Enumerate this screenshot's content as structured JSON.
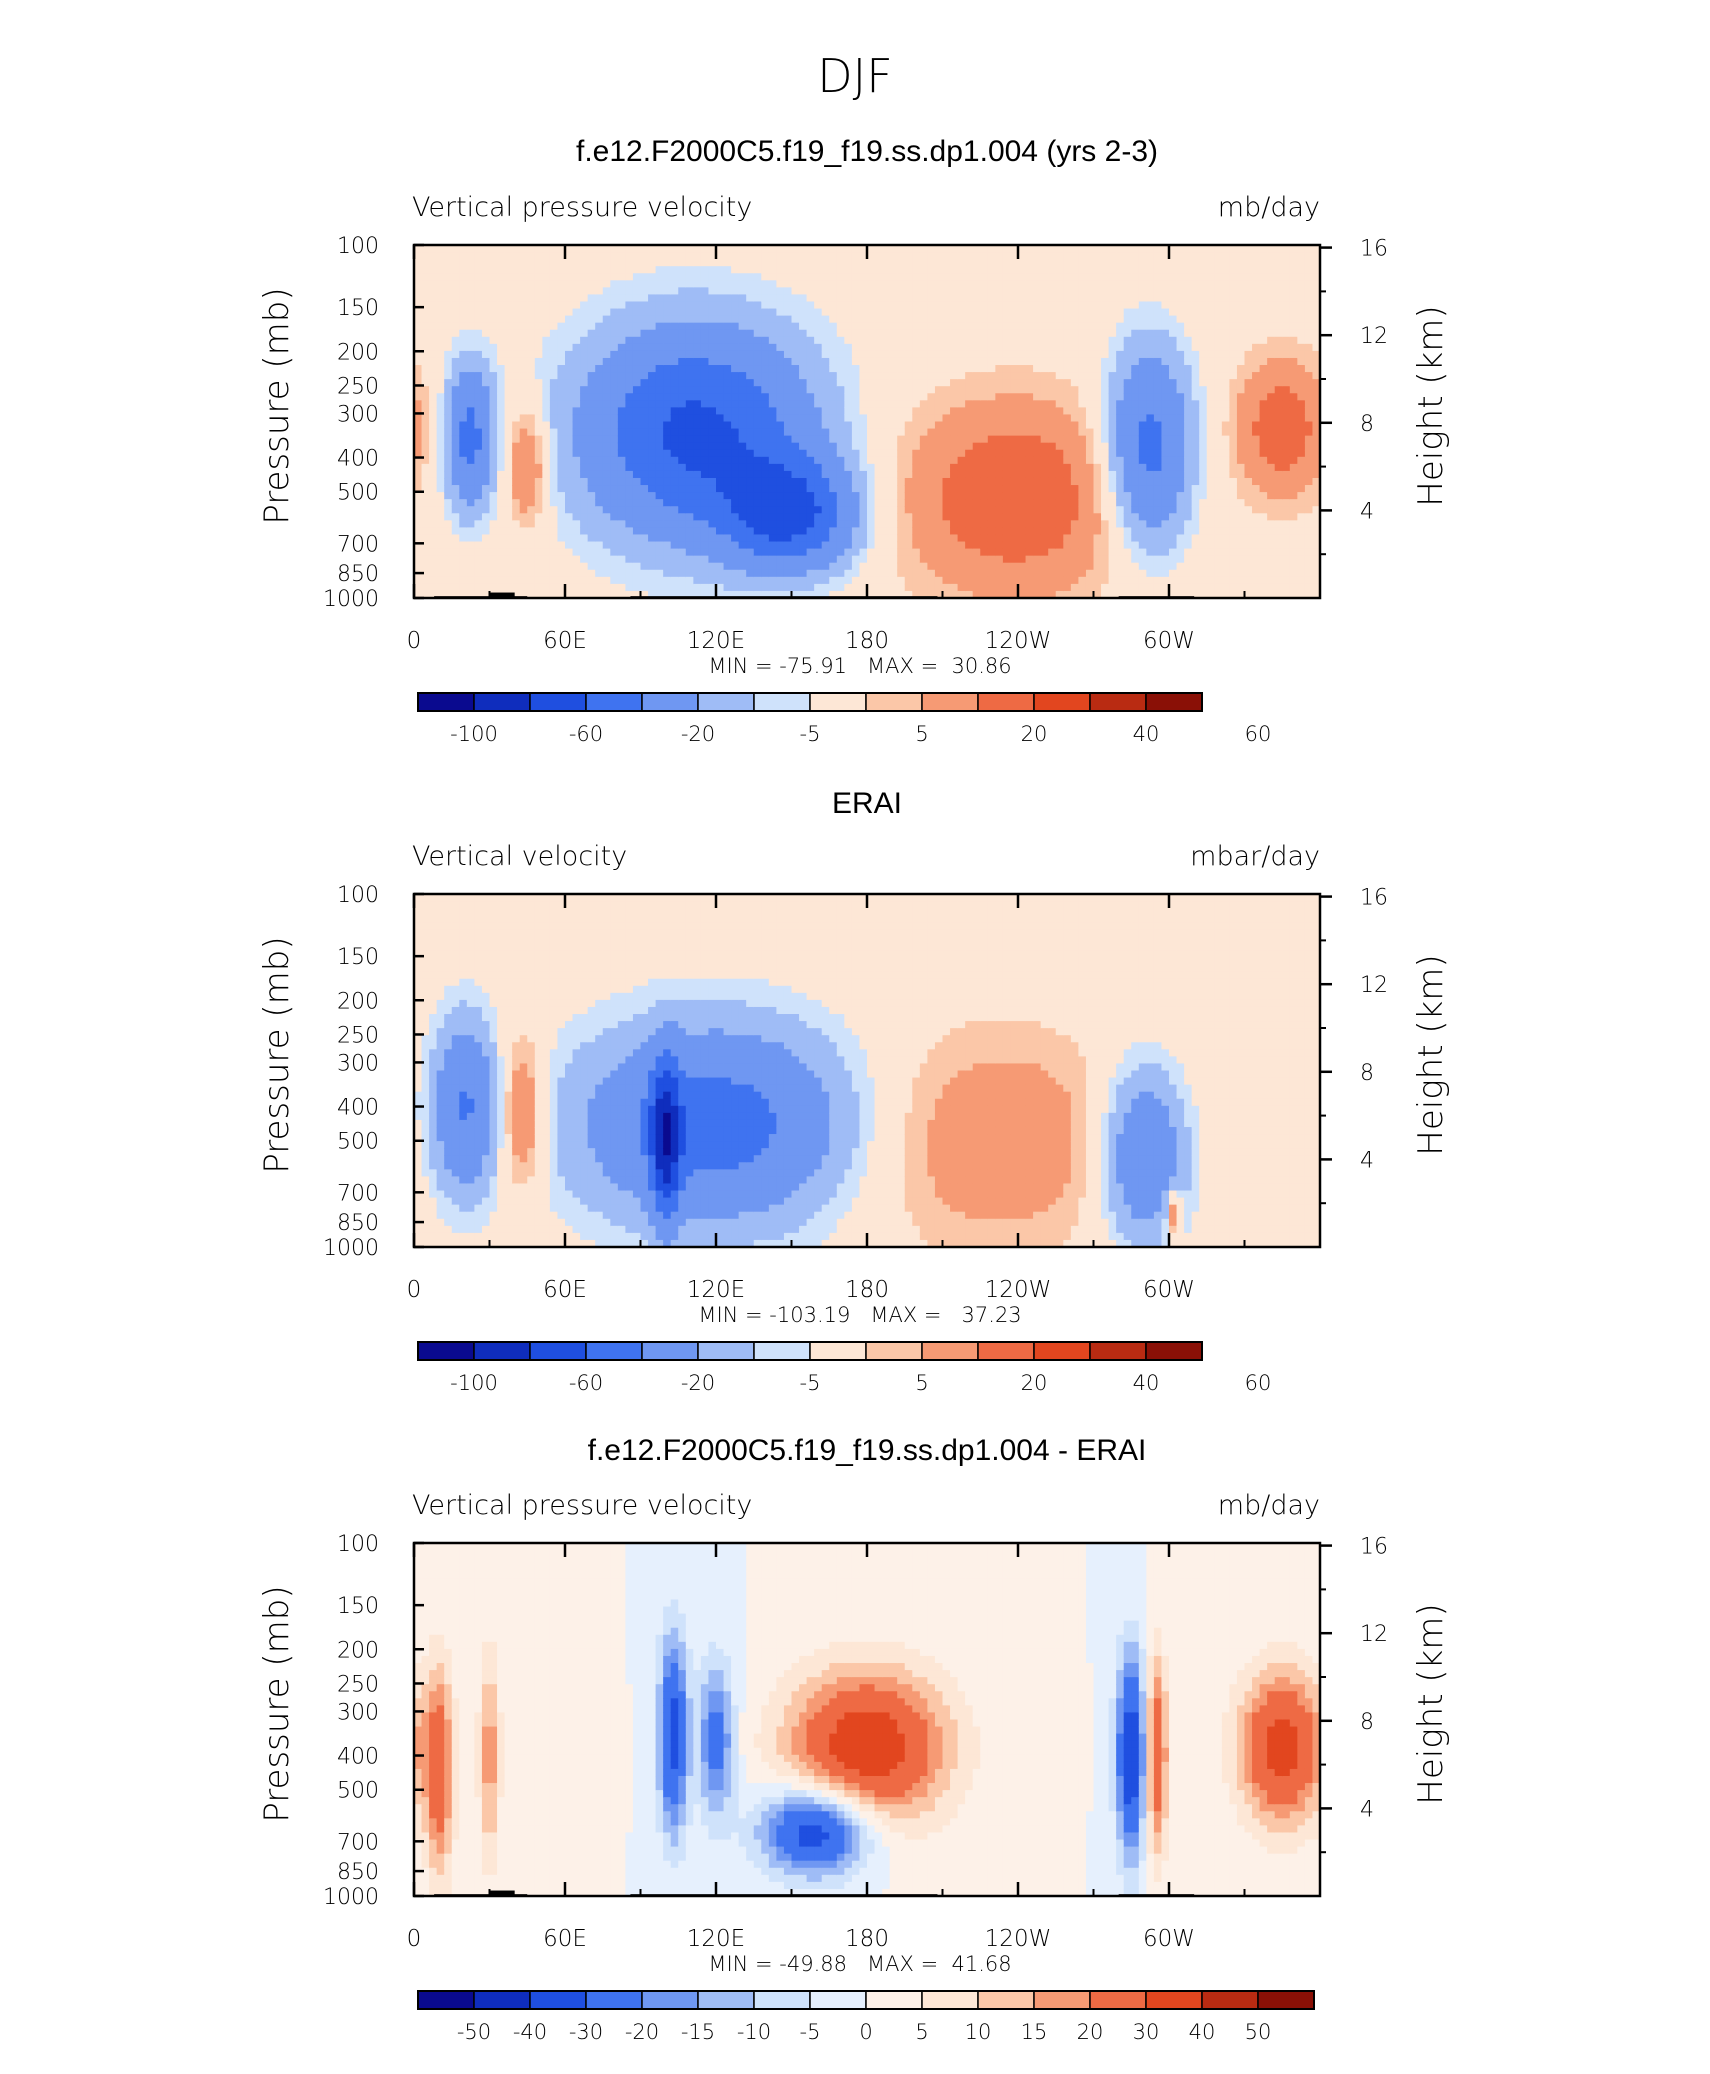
{
  "page_title": "DJF",
  "chart_data": [
    {
      "type": "heatmap",
      "title": "f.e12.F2000C5.f19_f19.ss.dp1.004 (yrs 2-3)",
      "variable_label": "Vertical pressure velocity",
      "units": "mb/day",
      "ylabel": "Pressure (mb)",
      "y2label": "Height (km)",
      "x_ticks": [
        "0",
        "60E",
        "120E",
        "180",
        "120W",
        "60W"
      ],
      "x_tick_lon": [
        0,
        60,
        120,
        180,
        240,
        300
      ],
      "xlim": [
        0,
        360
      ],
      "y_ticks": [
        "100",
        "150",
        "200",
        "250",
        "300",
        "400",
        "500",
        "700",
        "850",
        "1000"
      ],
      "y_tick_p": [
        100,
        150,
        200,
        250,
        300,
        400,
        500,
        700,
        850,
        1000
      ],
      "ylim": [
        1000,
        100
      ],
      "y2_ticks": [
        "16",
        "12",
        "8",
        "4"
      ],
      "y2_tick_km": [
        16,
        12,
        8,
        4
      ],
      "stats": "MIN = -75.91   MAX =  30.86",
      "min": -75.91,
      "max": 30.86,
      "colorbar_labels": [
        "-100",
        "-60",
        "-20",
        "-5",
        "5",
        "20",
        "40",
        "60"
      ],
      "land_blocks": true,
      "features": [
        {
          "lon": 22,
          "p": 350,
          "v": -45,
          "sx": 7,
          "sy": 0.33
        },
        {
          "lon": 45,
          "p": 420,
          "v": 25,
          "sx": 6,
          "sy": 0.28
        },
        {
          "lon": 112,
          "p": 340,
          "v": -65,
          "sx": 32,
          "sy": 0.48
        },
        {
          "lon": 150,
          "p": 580,
          "v": -60,
          "sx": 18,
          "sy": 0.25
        },
        {
          "lon": 238,
          "p": 520,
          "v": 30,
          "sx": 33,
          "sy": 0.45
        },
        {
          "lon": 292,
          "p": 380,
          "v": -50,
          "sx": 12,
          "sy": 0.45
        },
        {
          "lon": 345,
          "p": 330,
          "v": 28,
          "sx": 13,
          "sy": 0.32
        }
      ]
    },
    {
      "type": "heatmap",
      "title": "ERAI",
      "variable_label": "Vertical velocity",
      "units": "mbar/day",
      "ylabel": "Pressure (mb)",
      "y2label": "Height (km)",
      "x_ticks": [
        "0",
        "60E",
        "120E",
        "180",
        "120W",
        "60W"
      ],
      "x_tick_lon": [
        0,
        60,
        120,
        180,
        240,
        300
      ],
      "xlim": [
        0,
        360
      ],
      "y_ticks": [
        "100",
        "150",
        "200",
        "250",
        "300",
        "400",
        "500",
        "700",
        "850",
        "1000"
      ],
      "y_tick_p": [
        100,
        150,
        200,
        250,
        300,
        400,
        500,
        700,
        850,
        1000
      ],
      "ylim": [
        1000,
        100
      ],
      "y2_ticks": [
        "16",
        "12",
        "8",
        "4"
      ],
      "y2_tick_km": [
        16,
        12,
        8,
        4
      ],
      "stats": "MIN = -103.19   MAX =   37.23",
      "min": -103.19,
      "max": 37.23,
      "colorbar_labels": [
        "-100",
        "-60",
        "-20",
        "-5",
        "5",
        "20",
        "40",
        "60"
      ],
      "land_blocks": false,
      "features": [
        {
          "lon": 20,
          "p": 400,
          "v": -40,
          "sx": 9,
          "sy": 0.4
        },
        {
          "lon": 43,
          "p": 420,
          "v": 25,
          "sx": 6,
          "sy": 0.35
        },
        {
          "lon": 120,
          "p": 450,
          "v": -50,
          "sx": 38,
          "sy": 0.45
        },
        {
          "lon": 100,
          "p": 500,
          "v": -65,
          "sx": 4,
          "sy": 0.35
        },
        {
          "lon": 230,
          "p": 500,
          "v": 18,
          "sx": 38,
          "sy": 0.5
        },
        {
          "lon": 290,
          "p": 550,
          "v": -40,
          "sx": 12,
          "sy": 0.4
        },
        {
          "lon": 302,
          "p": 800,
          "v": 30,
          "sx": 2,
          "sy": 0.1
        }
      ]
    },
    {
      "type": "heatmap",
      "title": "f.e12.F2000C5.f19_f19.ss.dp1.004 - ERAI",
      "variable_label": "Vertical pressure velocity",
      "units": "mb/day",
      "ylabel": "Pressure (mb)",
      "y2label": "Height (km)",
      "x_ticks": [
        "0",
        "60E",
        "120E",
        "180",
        "120W",
        "60W"
      ],
      "x_tick_lon": [
        0,
        60,
        120,
        180,
        240,
        300
      ],
      "xlim": [
        0,
        360
      ],
      "y_ticks": [
        "100",
        "150",
        "200",
        "250",
        "300",
        "400",
        "500",
        "700",
        "850",
        "1000"
      ],
      "y_tick_p": [
        100,
        150,
        200,
        250,
        300,
        400,
        500,
        700,
        850,
        1000
      ],
      "ylim": [
        1000,
        100
      ],
      "y2_ticks": [
        "16",
        "12",
        "8",
        "4"
      ],
      "y2_tick_km": [
        16,
        12,
        8,
        4
      ],
      "stats": "MIN = -49.88   MAX =  41.68",
      "min": -49.88,
      "max": 41.68,
      "colorbar_labels": [
        "-50",
        "-40",
        "-30",
        "-20",
        "-15",
        "-10",
        "-5",
        "0",
        "5",
        "10",
        "15",
        "20",
        "30",
        "40",
        "50"
      ],
      "land_blocks": true,
      "features": [
        {
          "lon": 10,
          "p": 450,
          "v": 25,
          "sx": 4,
          "sy": 0.5
        },
        {
          "lon": 30,
          "p": 400,
          "v": 18,
          "sx": 3,
          "sy": 0.5
        },
        {
          "lon": 103,
          "p": 350,
          "v": -35,
          "sx": 4,
          "sy": 0.45
        },
        {
          "lon": 120,
          "p": 360,
          "v": -25,
          "sx": 5,
          "sy": 0.35
        },
        {
          "lon": 160,
          "p": 650,
          "v": -40,
          "sx": 15,
          "sy": 0.2
        },
        {
          "lon": 180,
          "p": 380,
          "v": 38,
          "sx": 22,
          "sy": 0.35
        },
        {
          "lon": 285,
          "p": 400,
          "v": -40,
          "sx": 4,
          "sy": 0.45
        },
        {
          "lon": 295,
          "p": 400,
          "v": 30,
          "sx": 3,
          "sy": 0.45
        },
        {
          "lon": 345,
          "p": 380,
          "v": 35,
          "sx": 12,
          "sy": 0.35
        }
      ]
    }
  ]
}
